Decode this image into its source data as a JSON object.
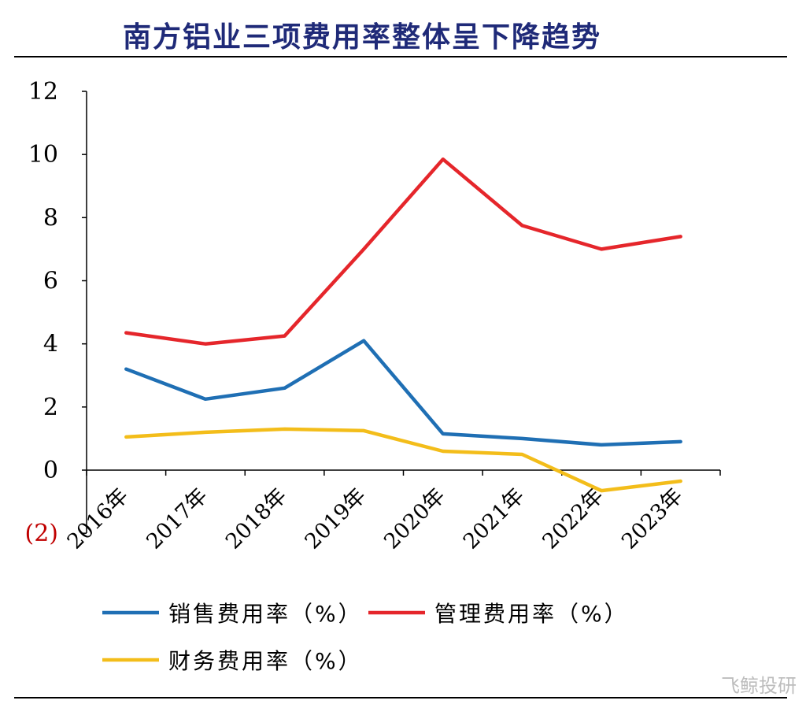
{
  "title": "南方铝业三项费用率整体呈下降趋势",
  "watermark": "飞鲸投研",
  "chart_data": {
    "type": "line",
    "title": "南方铝业三项费用率整体呈下降趋势",
    "categories": [
      "2016年",
      "2017年",
      "2018年",
      "2019年",
      "2020年",
      "2021年",
      "2022年",
      "2023年"
    ],
    "yticks": [
      "(2)",
      "0",
      "2",
      "4",
      "6",
      "8",
      "10",
      "12"
    ],
    "ylim": [
      -2,
      12
    ],
    "grid": false,
    "legend": "bottom",
    "series": [
      {
        "name": "销售费用率（%）",
        "color": "#1f6fb4",
        "values": [
          3.2,
          2.25,
          2.6,
          4.1,
          1.15,
          1.0,
          0.8,
          0.9
        ]
      },
      {
        "name": "管理费用率（%）",
        "color": "#e5262b",
        "values": [
          4.35,
          4.0,
          4.25,
          7.0,
          9.85,
          7.75,
          7.0,
          7.4
        ]
      },
      {
        "name": "财务费用率（%）",
        "color": "#f3bd1a",
        "values": [
          1.05,
          1.2,
          1.3,
          1.25,
          0.6,
          0.5,
          -0.65,
          -0.35
        ]
      }
    ]
  }
}
